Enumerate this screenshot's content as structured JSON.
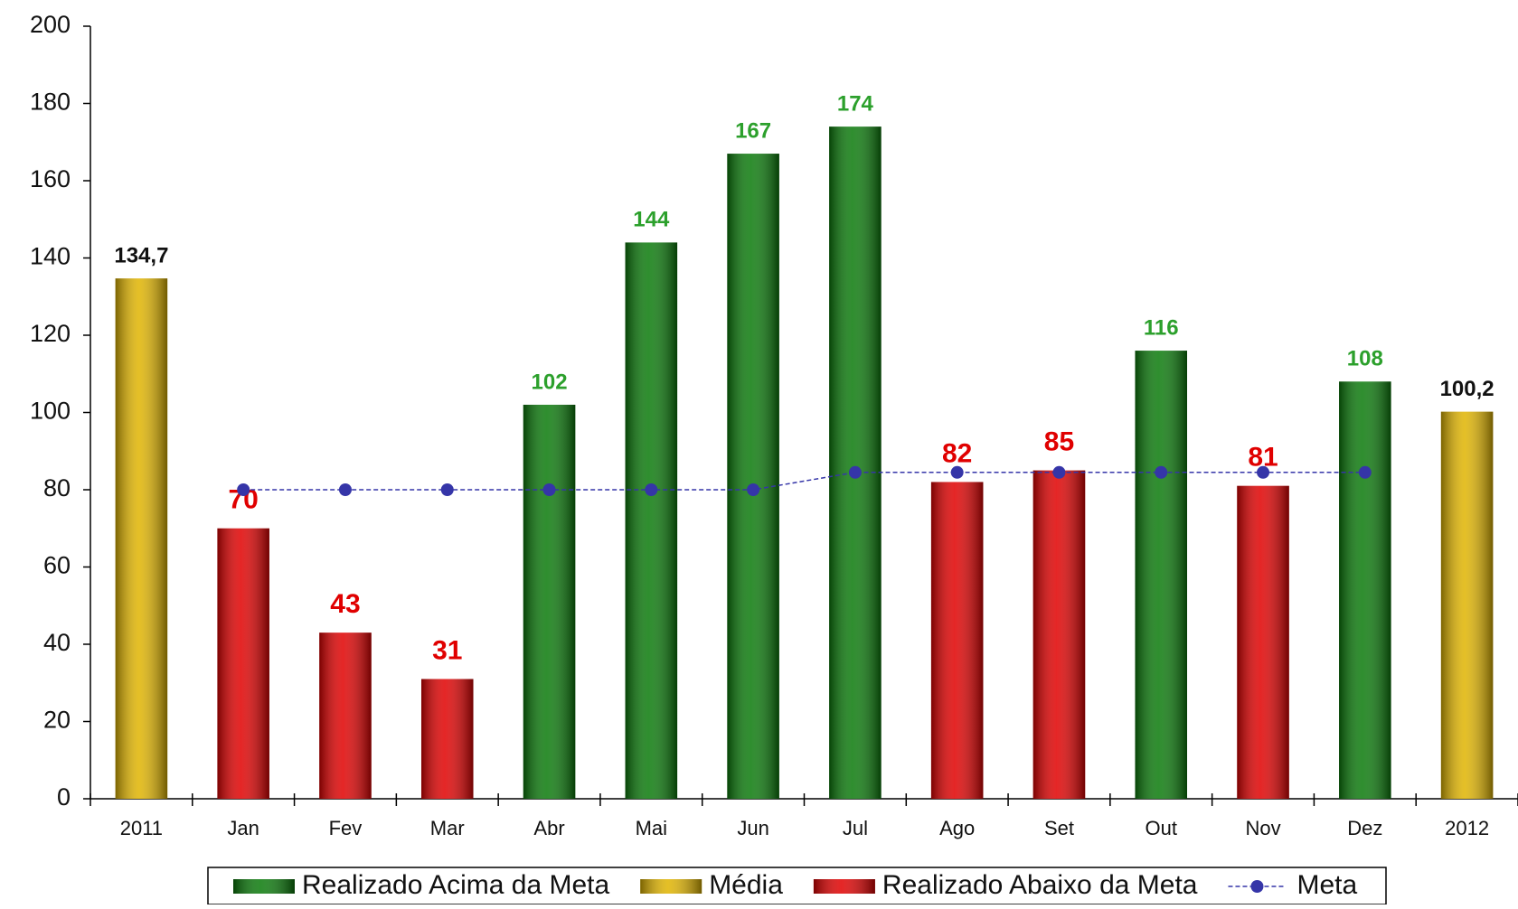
{
  "chart_data": {
    "type": "bar",
    "categories": [
      "2011",
      "Jan",
      "Fev",
      "Mar",
      "Abr",
      "Mai",
      "Jun",
      "Jul",
      "Ago",
      "Set",
      "Out",
      "Nov",
      "Dez",
      "2012"
    ],
    "series": [
      {
        "name": "Realizado Acima da Meta",
        "color": "#0a7a0a",
        "label_color": "#2ca02c",
        "type": "bar",
        "values": [
          null,
          null,
          null,
          null,
          102,
          144,
          167,
          174,
          null,
          null,
          116,
          null,
          108,
          null
        ]
      },
      {
        "name": "Média",
        "color": "#e0b400",
        "label_color": "#111111",
        "type": "bar",
        "values": [
          134.7,
          null,
          null,
          null,
          null,
          null,
          null,
          null,
          null,
          null,
          null,
          null,
          null,
          100.2
        ],
        "value_labels": [
          "134,7",
          null,
          null,
          null,
          null,
          null,
          null,
          null,
          null,
          null,
          null,
          null,
          null,
          "100,2"
        ]
      },
      {
        "name": "Realizado Abaixo da Meta",
        "color": "#e00000",
        "label_color": "#e00000",
        "type": "bar",
        "values": [
          null,
          70,
          43,
          31,
          null,
          null,
          null,
          null,
          82,
          85,
          null,
          81,
          null,
          null
        ]
      },
      {
        "name": "Meta",
        "color": "#3535a8",
        "type": "line",
        "values": [
          null,
          80,
          80,
          80,
          80,
          80,
          80,
          84.5,
          84.5,
          84.5,
          84.5,
          84.5,
          84.5,
          null
        ]
      }
    ],
    "ylim": [
      0,
      200
    ],
    "yticks": [
      0,
      20,
      40,
      60,
      80,
      100,
      120,
      140,
      160,
      180,
      200
    ],
    "grid": false,
    "legend": "bottom"
  }
}
